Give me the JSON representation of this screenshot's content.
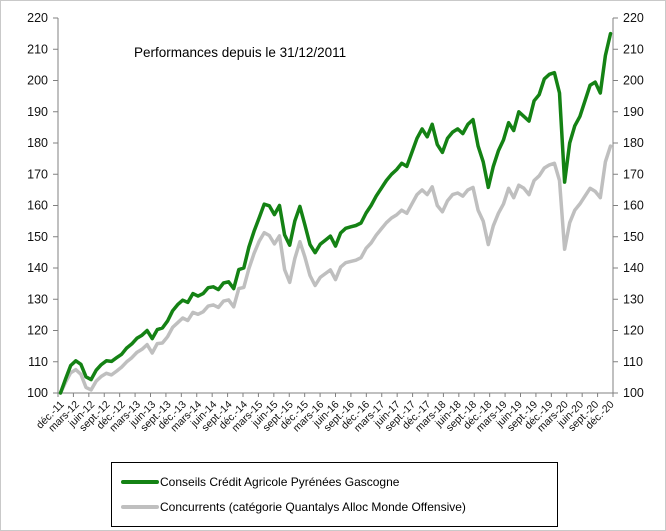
{
  "title": "Performances depuis le 31/12/2011",
  "axis_color": "#808080",
  "chart_data": {
    "type": "line",
    "title": "Performances depuis le 31/12/2011",
    "x_tick_labels": [
      "déc.-11",
      "mars-12",
      "juin-12",
      "sept.-12",
      "déc.-12",
      "mars-13",
      "juin-13",
      "sept.-13",
      "déc.-13",
      "mars-14",
      "juin-14",
      "sept.-14",
      "déc.-14",
      "mars-15",
      "juin-15",
      "sept.-15",
      "déc.-15",
      "mars-16",
      "juin-16",
      "sept.-16",
      "déc.-16",
      "mars-17",
      "juin-17",
      "sept.-17",
      "déc.-17",
      "mars-18",
      "juin-18",
      "sept.-18",
      "déc.-18",
      "mars-19",
      "juin-19",
      "sept.-19",
      "déc.-19",
      "mars-20",
      "juin-20",
      "sept.-20",
      "déc.-20"
    ],
    "points_per_x_tick": 3,
    "ylim": [
      100,
      220
    ],
    "y_ticks": [
      100,
      110,
      120,
      130,
      140,
      150,
      160,
      170,
      180,
      190,
      200,
      210,
      220
    ],
    "y_axis_sides": "both",
    "grid": false,
    "legend_position": "bottom",
    "series": [
      {
        "name": "Conseils Crédit Agricole Pyrénées Gascogne",
        "color": "#148214",
        "values": [
          100,
          104.5,
          108.8,
          110.3,
          109.2,
          105.2,
          104.3,
          107.3,
          109.1,
          110.3,
          110.1,
          111.3,
          112.4,
          114.4,
          115.7,
          117.5,
          118.5,
          120.0,
          117.4,
          120.3,
          120.8,
          123.0,
          126.3,
          128.3,
          129.7,
          129.0,
          131.8,
          131.0,
          131.8,
          133.7,
          134.0,
          133.1,
          135.2,
          135.6,
          133.4,
          139.5,
          140.0,
          146.7,
          151.7,
          156.0,
          160.4,
          159.9,
          157.1,
          160.0,
          150.6,
          147.3,
          155.0,
          159.7,
          153.8,
          147.5,
          144.9,
          147.6,
          148.9,
          150.2,
          147.0,
          151.2,
          152.7,
          153.2,
          153.6,
          154.4,
          157.6,
          160.0,
          163.0,
          165.5,
          168.0,
          170.0,
          171.5,
          173.5,
          172.5,
          177.0,
          181.5,
          184.5,
          182.0,
          186.0,
          179.5,
          177.0,
          181.5,
          183.5,
          184.5,
          183.0,
          186.0,
          187.5,
          179.0,
          174.0,
          165.8,
          172.5,
          177.5,
          181.0,
          186.5,
          184.0,
          190.0,
          188.5,
          187.0,
          193.5,
          195.5,
          200.5,
          202.0,
          202.5,
          196.0,
          167.5,
          180.0,
          185.5,
          188.5,
          193.5,
          198.5,
          199.5,
          196.0,
          208.0,
          215.0
        ]
      },
      {
        "name": "Concurrents (catégorie Quantalys Alloc Monde Offensive)",
        "color": "#BFBFBF",
        "values": [
          100,
          103.5,
          106.5,
          107.5,
          106.0,
          101.8,
          101.0,
          103.8,
          105.3,
          106.3,
          105.8,
          107.0,
          108.3,
          110.0,
          111.3,
          113.0,
          114.0,
          115.5,
          112.8,
          115.8,
          116.0,
          118.0,
          121.0,
          122.5,
          124.0,
          123.2,
          125.8,
          125.2,
          126.0,
          127.8,
          128.2,
          127.4,
          129.4,
          129.8,
          127.6,
          133.4,
          133.8,
          139.8,
          144.6,
          148.5,
          151.3,
          150.4,
          147.7,
          150.3,
          139.5,
          135.4,
          143.0,
          148.4,
          143.5,
          137.6,
          134.4,
          137.0,
          138.2,
          139.4,
          136.3,
          140.3,
          141.7,
          142.1,
          142.5,
          143.3,
          146.3,
          148.0,
          150.5,
          152.5,
          154.5,
          156.0,
          157.0,
          158.5,
          157.5,
          160.5,
          163.5,
          165.0,
          163.5,
          166.0,
          160.0,
          158.0,
          161.5,
          163.5,
          164.0,
          163.0,
          165.0,
          165.8,
          158.5,
          155.0,
          147.5,
          153.5,
          157.5,
          160.5,
          165.5,
          162.5,
          166.5,
          165.5,
          163.5,
          168.0,
          169.5,
          172.0,
          173.0,
          173.5,
          168.0,
          146.0,
          154.5,
          158.5,
          160.5,
          163.0,
          165.5,
          164.5,
          162.5,
          174.0,
          179.0
        ]
      }
    ]
  }
}
